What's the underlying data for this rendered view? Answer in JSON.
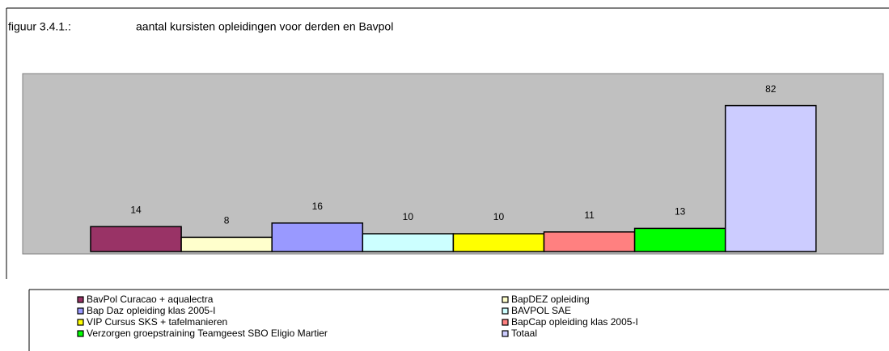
{
  "chart_data": {
    "type": "bar",
    "figure_label": "figuur 3.4.1.:",
    "title": "aantal kursisten opleidingen voor derden en Bavpol",
    "categories": [
      "BavPol Curacao + aqualectra",
      "BapDEZ opleiding",
      "Bap Daz opleiding klas 2005-I",
      "BAVPOL SAE",
      "VIP Cursus SKS + tafelmanieren",
      "BapCap opleiding klas 2005-I",
      "Verzorgen groepstraining Teamgeest SBO Eligio Martier",
      "Totaal"
    ],
    "values": [
      14,
      8,
      16,
      10,
      10,
      11,
      13,
      82
    ],
    "colors": [
      "#993366",
      "#ffffcc",
      "#9999ff",
      "#ccffff",
      "#ffff00",
      "#ff8080",
      "#00ff00",
      "#ccccff"
    ],
    "plot_color": "#c0c0c0",
    "ylim": [
      0,
      100
    ]
  }
}
